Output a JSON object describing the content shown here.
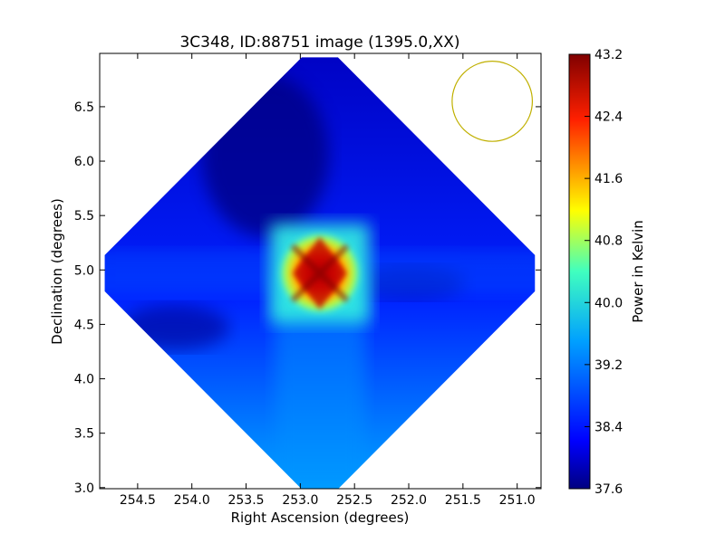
{
  "chart_data": {
    "type": "heatmap",
    "title": "3C348, ID:88751 image (1395.0,XX)",
    "xlabel": "Right Ascension (degrees)",
    "ylabel": "Declination (degrees)",
    "xlim": [
      254.85,
      250.78
    ],
    "ylim": [
      2.99,
      6.99
    ],
    "xticks": [
      254.5,
      254.0,
      253.5,
      253.0,
      252.5,
      252.0,
      251.5,
      251.0
    ],
    "xtick_labels": [
      "254.5",
      "254.0",
      "253.5",
      "253.0",
      "252.5",
      "252.0",
      "251.5",
      "251.0"
    ],
    "yticks": [
      3.0,
      3.5,
      4.0,
      4.5,
      5.0,
      5.5,
      6.0,
      6.5
    ],
    "ytick_labels": [
      "3.0",
      "3.5",
      "4.0",
      "4.5",
      "5.0",
      "5.5",
      "6.0",
      "6.5"
    ],
    "colorbar": {
      "label": "Power in Kelvin",
      "min": 37.6,
      "max": 43.2,
      "ticks": [
        37.6,
        38.4,
        39.2,
        40.0,
        40.8,
        41.6,
        42.4,
        43.2
      ],
      "tick_labels": [
        "37.6",
        "38.4",
        "39.2",
        "40.0",
        "40.8",
        "41.6",
        "42.4",
        "43.2"
      ],
      "colormap": "jet"
    },
    "map": {
      "center": [
        252.82,
        4.97
      ],
      "peak_value": 43.2,
      "field_extent_deg": 2.0,
      "field_shape": "diamond"
    },
    "beam": {
      "center": [
        251.23,
        6.55
      ],
      "radius_deg": 0.37,
      "color": "#c0b000"
    }
  }
}
